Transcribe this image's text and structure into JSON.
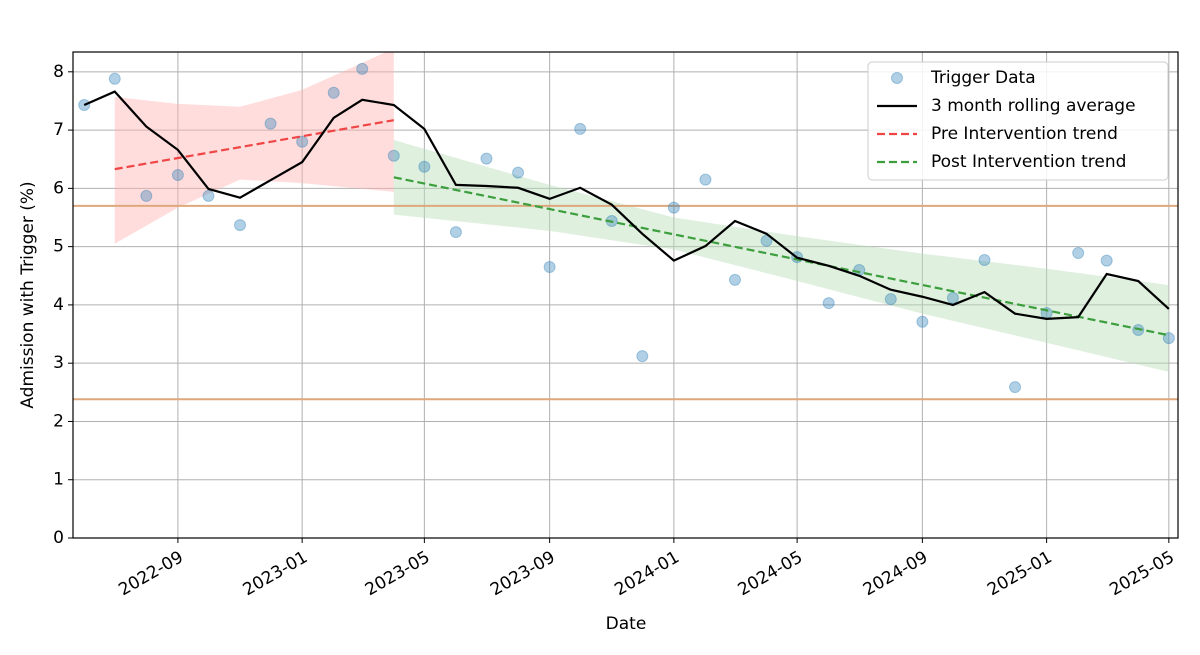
{
  "chart_data": {
    "type": "line",
    "x_label": "Date",
    "y_label": "Admission with Trigger (%)",
    "x": [
      "2022-06",
      "2022-07",
      "2022-08",
      "2022-09",
      "2022-10",
      "2022-11",
      "2022-12",
      "2023-01",
      "2023-02",
      "2023-03",
      "2023-04",
      "2023-05",
      "2023-06",
      "2023-07",
      "2023-08",
      "2023-09",
      "2023-10",
      "2023-11",
      "2023-12",
      "2024-01",
      "2024-02",
      "2024-03",
      "2024-04",
      "2024-05",
      "2024-06",
      "2024-07",
      "2024-08",
      "2024-09",
      "2024-10",
      "2024-11",
      "2024-12",
      "2025-01",
      "2025-02",
      "2025-03",
      "2025-04",
      "2025-05"
    ],
    "xlim": [
      "2022-05-21",
      "2025-05-10"
    ],
    "xticks": [
      "2022-09",
      "2023-01",
      "2023-05",
      "2023-09",
      "2024-01",
      "2024-05",
      "2024-09",
      "2025-01",
      "2025-05"
    ],
    "ylim": [
      0,
      8.34
    ],
    "yticks": [
      0,
      1,
      2,
      3,
      4,
      5,
      6,
      7,
      8
    ],
    "grid": true,
    "legend": "upper right",
    "series": [
      {
        "name": "Trigger Data",
        "style": "scatter",
        "color": "#1f77b4",
        "values": [
          7.43,
          7.88,
          5.87,
          6.23,
          5.87,
          5.37,
          7.11,
          6.8,
          7.64,
          8.05,
          6.56,
          6.37,
          5.25,
          6.51,
          6.27,
          4.65,
          7.02,
          5.44,
          3.12,
          5.67,
          6.15,
          4.43,
          5.1,
          4.82,
          4.03,
          4.6,
          4.1,
          3.71,
          4.12,
          4.77,
          2.59,
          3.86,
          4.89,
          4.76,
          3.57,
          3.43
        ]
      },
      {
        "name": "3 month rolling average",
        "style": "line",
        "color": "#000000",
        "values": [
          7.43,
          7.66,
          7.06,
          6.66,
          5.99,
          5.84,
          6.14,
          6.45,
          7.21,
          7.52,
          7.43,
          7.02,
          6.06,
          6.04,
          6.01,
          5.82,
          6.01,
          5.72,
          5.22,
          4.76,
          5.01,
          5.44,
          5.22,
          4.81,
          4.67,
          4.5,
          4.26,
          4.14,
          4.0,
          4.22,
          3.85,
          3.76,
          3.79,
          4.53,
          4.41,
          3.93
        ]
      },
      {
        "name": "Pre Intervention trend",
        "style": "dashed",
        "color": "#f04545",
        "x": [
          "2022-07",
          "2023-04"
        ],
        "values": [
          6.33,
          7.17
        ],
        "band": {
          "color": "#ffb3b3",
          "x": [
            "2022-07",
            "2022-09",
            "2022-11",
            "2023-01",
            "2023-04"
          ],
          "upper": [
            7.57,
            7.45,
            7.4,
            7.69,
            8.4
          ],
          "lower": [
            5.05,
            5.67,
            6.15,
            6.09,
            5.94
          ]
        }
      },
      {
        "name": "Post Intervention trend",
        "style": "dashed",
        "color": "#3c9e3c",
        "x": [
          "2023-04",
          "2025-05"
        ],
        "values": [
          6.19,
          3.48
        ],
        "band": {
          "color": "#b9deb9",
          "x": [
            "2023-04",
            "2023-09",
            "2024-01",
            "2024-05",
            "2024-09",
            "2025-01",
            "2025-05"
          ],
          "upper": [
            6.83,
            6.06,
            5.5,
            5.18,
            4.88,
            4.62,
            4.34
          ],
          "lower": [
            5.55,
            5.27,
            4.95,
            4.41,
            3.85,
            3.35,
            2.85
          ]
        }
      }
    ],
    "hlines": [
      {
        "value": 5.7,
        "color": "#dfa87c"
      },
      {
        "value": 2.38,
        "color": "#dfa87c"
      }
    ]
  }
}
